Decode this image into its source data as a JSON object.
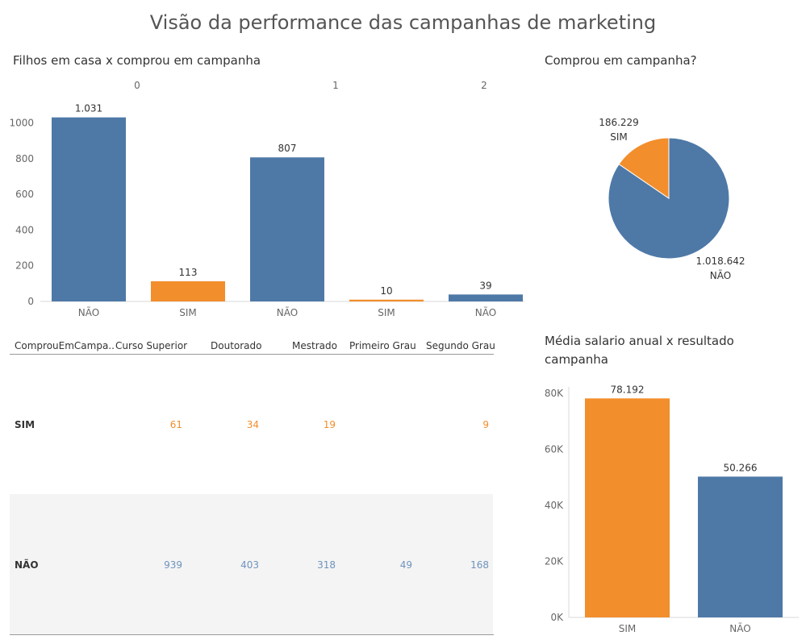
{
  "dashboard": {
    "title": "Visão da performance das campanhas de marketing",
    "colors": {
      "sim": "#f28e2c",
      "nao": "#4e79a7",
      "axis_text": "#666666"
    }
  },
  "chart_data": [
    {
      "type": "bar",
      "title": "Filhos em casa x comprou em campanha",
      "groups": [
        "0",
        "1",
        "2"
      ],
      "categories": [
        "NÃO",
        "SIM",
        "NÃO",
        "SIM",
        "NÃO"
      ],
      "group_of_bar": [
        "0",
        "0",
        "1",
        "1",
        "2"
      ],
      "values": [
        1031,
        113,
        807,
        10,
        39
      ],
      "value_labels": [
        "1.031",
        "113",
        "807",
        "10",
        "39"
      ],
      "ylim": [
        0,
        1000
      ],
      "yticks": [
        "0",
        "200",
        "400",
        "600",
        "800",
        "1000"
      ],
      "grid": false
    },
    {
      "type": "pie",
      "title": "Comprou em campanha?",
      "labels": [
        "SIM",
        "NÃO"
      ],
      "values": [
        186229,
        1018642
      ],
      "value_labels": [
        "186.229",
        "1.018.642"
      ]
    },
    {
      "type": "table",
      "columns": [
        "ComprouEmCampa..",
        "Curso Superior",
        "Doutorado",
        "Mestrado",
        "Primeiro Grau",
        "Segundo Grau"
      ],
      "rows": [
        {
          "label": "SIM",
          "values": [
            "61",
            "34",
            "19",
            "",
            "9"
          ]
        },
        {
          "label": "NÃO",
          "values": [
            "939",
            "403",
            "318",
            "49",
            "168"
          ]
        }
      ]
    },
    {
      "type": "bar",
      "title": "Média salario anual x resultado campanha",
      "categories": [
        "SIM",
        "NÃO"
      ],
      "values": [
        78192,
        50266
      ],
      "value_labels": [
        "78.192",
        "50.266"
      ],
      "ylim": [
        0,
        80000
      ],
      "yticks": [
        "0K",
        "20K",
        "40K",
        "60K",
        "80K"
      ],
      "grid": false
    }
  ]
}
